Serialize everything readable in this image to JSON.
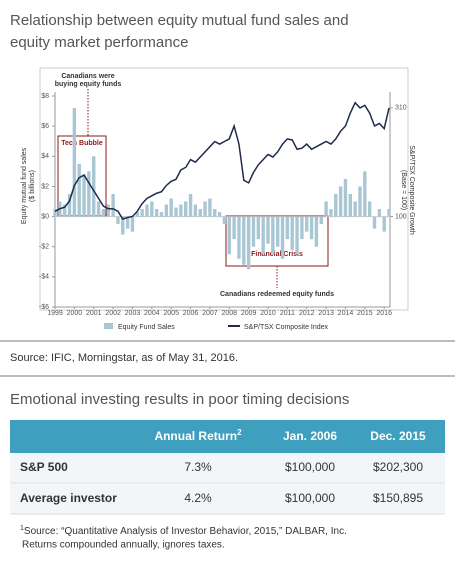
{
  "chart_data": {
    "type": "bar_line",
    "title": [
      "Relationship between equity mutual fund sales and",
      "equity market performance"
    ],
    "y_label": [
      "Equity mutual fund sales",
      "($ billions)"
    ],
    "y2_label": [
      "S&P/TSX Composite Growth",
      "(Base = 100)"
    ],
    "annotations": [
      "Canadians were",
      "buying equity funds",
      "Tech Bubble",
      "Financial Crisis",
      "Canadians redeemed equity funds"
    ],
    "x": [
      1999,
      1999.25,
      1999.5,
      1999.75,
      2000,
      2000.25,
      2000.5,
      2000.75,
      2001,
      2001.25,
      2001.5,
      2001.75,
      2002,
      2002.25,
      2002.5,
      2002.75,
      2003,
      2003.25,
      2003.5,
      2003.75,
      2004,
      2004.25,
      2004.5,
      2004.75,
      2005,
      2005.25,
      2005.5,
      2005.75,
      2006,
      2006.25,
      2006.5,
      2006.75,
      2007,
      2007.25,
      2007.5,
      2007.75,
      2008,
      2008.25,
      2008.5,
      2008.75,
      2009,
      2009.25,
      2009.5,
      2009.75,
      2010,
      2010.25,
      2010.5,
      2010.75,
      2011,
      2011.25,
      2011.5,
      2011.75,
      2012,
      2012.25,
      2012.5,
      2012.75,
      2013,
      2013.25,
      2013.5,
      2013.75,
      2014,
      2014.25,
      2014.5,
      2014.75,
      2015,
      2015.25,
      2015.5,
      2015.75,
      2016,
      2016.25
    ],
    "series": [
      {
        "name": "Equity Fund Sales",
        "color": "#a9c6d3",
        "kind": "bar",
        "values": [
          0.5,
          1.0,
          0.8,
          1.5,
          7.2,
          3.5,
          2.8,
          3.0,
          4.0,
          1.0,
          0.5,
          0.8,
          1.5,
          -0.5,
          -1.2,
          -0.8,
          -1.0,
          0.3,
          0.5,
          0.8,
          1.0,
          0.5,
          0.3,
          0.8,
          1.2,
          0.6,
          0.8,
          1.0,
          1.5,
          0.8,
          0.5,
          1.0,
          1.2,
          0.5,
          0.3,
          -0.5,
          -2.5,
          -1.5,
          -2.8,
          -3.2,
          -3.5,
          -2.0,
          -1.5,
          -2.5,
          -1.8,
          -2.5,
          -2.0,
          -2.8,
          -1.5,
          -2.2,
          -2.5,
          -1.5,
          -1.0,
          -1.5,
          -2.0,
          -0.5,
          1.0,
          0.5,
          1.5,
          2.0,
          2.5,
          1.5,
          1.0,
          2.0,
          3.0,
          1.0,
          -0.8,
          0.5,
          -1.0,
          0.5
        ]
      },
      {
        "name": "S&P/TSX Composite Index",
        "color": "#1f2a4d",
        "kind": "line",
        "axis": "y2",
        "values": [
          110,
          115,
          118,
          130,
          160,
          175,
          180,
          165,
          150,
          135,
          120,
          115,
          115,
          110,
          95,
          98,
          100,
          110,
          125,
          135,
          140,
          145,
          148,
          160,
          168,
          172,
          190,
          195,
          210,
          205,
          215,
          225,
          235,
          245,
          240,
          245,
          250,
          275,
          240,
          170,
          165,
          185,
          200,
          210,
          220,
          215,
          225,
          240,
          250,
          248,
          230,
          232,
          240,
          230,
          235,
          240,
          245,
          240,
          250,
          265,
          275,
          300,
          320,
          310,
          315,
          300,
          275,
          280,
          270,
          310
        ]
      }
    ],
    "xlim": [
      1999,
      2016.3
    ],
    "xticks": [
      1999,
      2000,
      2001,
      2002,
      2003,
      2004,
      2005,
      2006,
      2007,
      2008,
      2009,
      2010,
      2011,
      2012,
      2013,
      2014,
      2015,
      2016
    ],
    "ylim": [
      -6,
      8
    ],
    "yticks": [
      {
        "value": 8,
        "label": "$8"
      },
      {
        "value": 6,
        "label": "$6"
      },
      {
        "value": 4,
        "label": "$4"
      },
      {
        "value": 2,
        "label": "$2"
      },
      {
        "value": 0,
        "label": "$0"
      },
      {
        "value": -2,
        "label": "-$2"
      },
      {
        "value": -4,
        "label": "-$4"
      },
      {
        "value": -6,
        "label": "-$6"
      }
    ],
    "y2lim": [
      -75,
      333
    ],
    "y2ticks": [
      100,
      310
    ]
  },
  "source": "Source: IFIC, Morningstar, as of May 31, 2016.",
  "table": {
    "title": "Emotional investing results in poor timing decisions",
    "columns": [
      {
        "text": "Annual Return",
        "sup": "2"
      },
      "Jan. 2006",
      "Dec. 2015"
    ],
    "rows": [
      [
        "S&P 500",
        "7.3%",
        "$100,000",
        "$202,300"
      ],
      [
        "Average investor",
        "4.2%",
        "$100,000",
        "$150,895"
      ]
    ],
    "footnote": {
      "marker": "1",
      "lines": [
        "Source: “Quantitative Analysis of Investor Behavior, 2015,” DALBAR, Inc.",
        "Returns compounded annually, ignores taxes."
      ]
    }
  }
}
